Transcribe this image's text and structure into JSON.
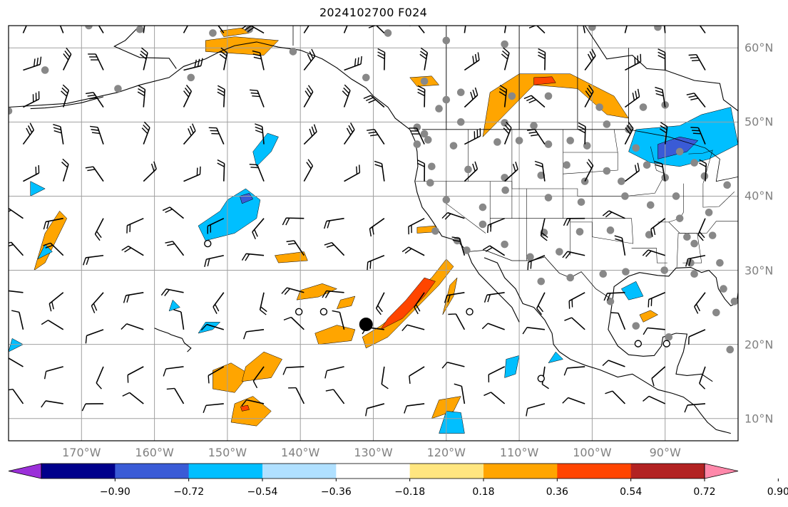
{
  "title": "2024102700 F024",
  "lon_labels": [
    "170°W",
    "160°W",
    "150°W",
    "140°W",
    "130°W",
    "120°W",
    "110°W",
    "100°W",
    "90°W"
  ],
  "lat_labels": [
    "60°N",
    "50°N",
    "40°N",
    "30°N",
    "20°N",
    "10°N"
  ],
  "colorbar": {
    "ticks": [
      "−0.90",
      "−0.72",
      "−0.54",
      "−0.36",
      "−0.18",
      "0.18",
      "0.36",
      "0.54",
      "0.72",
      "0.90"
    ],
    "colors": [
      "#9b30d9",
      "#00008b",
      "#3a5bd6",
      "#00bfff",
      "#b0e0ff",
      "#ffffff",
      "#ffe680",
      "#ffa500",
      "#ff4500",
      "#b22222",
      "#ff88aa"
    ],
    "extend": "both"
  },
  "map": {
    "projection": "plate-carree",
    "lon_range": [
      -180,
      -80
    ],
    "lat_range": [
      7,
      63
    ],
    "gridlines": true,
    "colors": {
      "coast": "#000000",
      "grid": "#a0a0a0",
      "station": "#888888",
      "orange": "#ffa500",
      "red": "#ff4500",
      "blue": "#00bfff",
      "darkblue": "#3a5bd6",
      "yellow": "#ffe680"
    },
    "marker_black": {
      "lon": -131,
      "lat": 22.7
    },
    "open_circles": [
      [
        -152.7,
        33.6
      ],
      [
        -140.2,
        24.4
      ],
      [
        -136.8,
        24.4
      ],
      [
        -116.8,
        24.4
      ],
      [
        -107.0,
        15.4
      ],
      [
        -93.7,
        20.1
      ],
      [
        -89.8,
        20.1
      ]
    ]
  }
}
